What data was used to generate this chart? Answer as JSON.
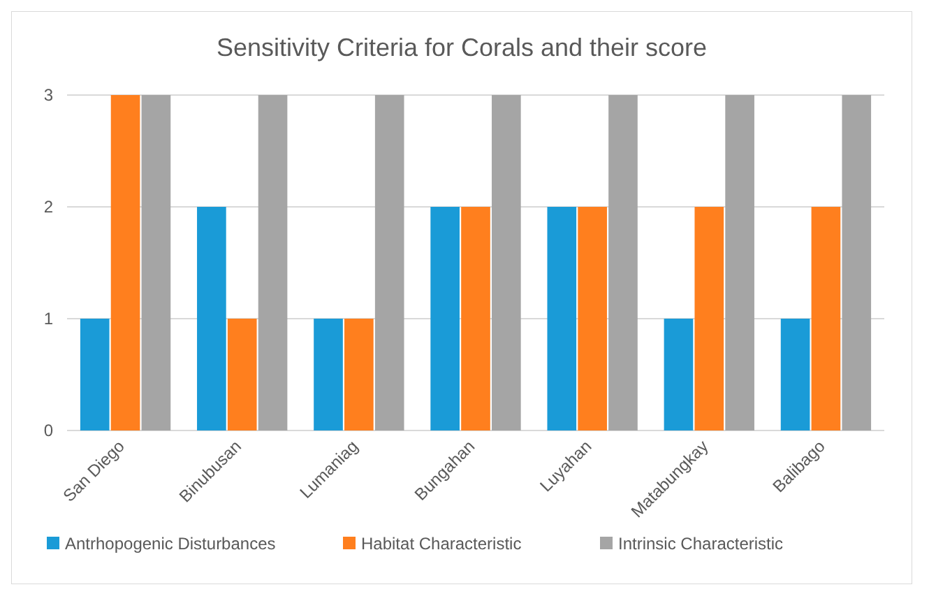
{
  "chart_data": {
    "type": "bar",
    "title": "Sensitivity Criteria for Corals and their score",
    "categories": [
      "San Diego",
      "Binubusan",
      "Lumaniag",
      "Bungahan",
      "Luyahan",
      "Matabungkay",
      "Balibago"
    ],
    "series": [
      {
        "name": "Antrhopogenic Disturbances",
        "color": "#1a9bd7",
        "values": [
          1,
          2,
          1,
          2,
          2,
          1,
          1
        ]
      },
      {
        "name": "Habitat Characteristic",
        "color": "#ff7f1e",
        "values": [
          3,
          1,
          1,
          2,
          2,
          2,
          2
        ]
      },
      {
        "name": "Intrinsic Characteristic",
        "color": "#a5a5a5",
        "values": [
          3,
          3,
          3,
          3,
          3,
          3,
          3
        ]
      }
    ],
    "ylim": [
      0,
      3
    ],
    "yticks": [
      0,
      1,
      2,
      3
    ],
    "grid": "y",
    "legend": "bottom"
  }
}
